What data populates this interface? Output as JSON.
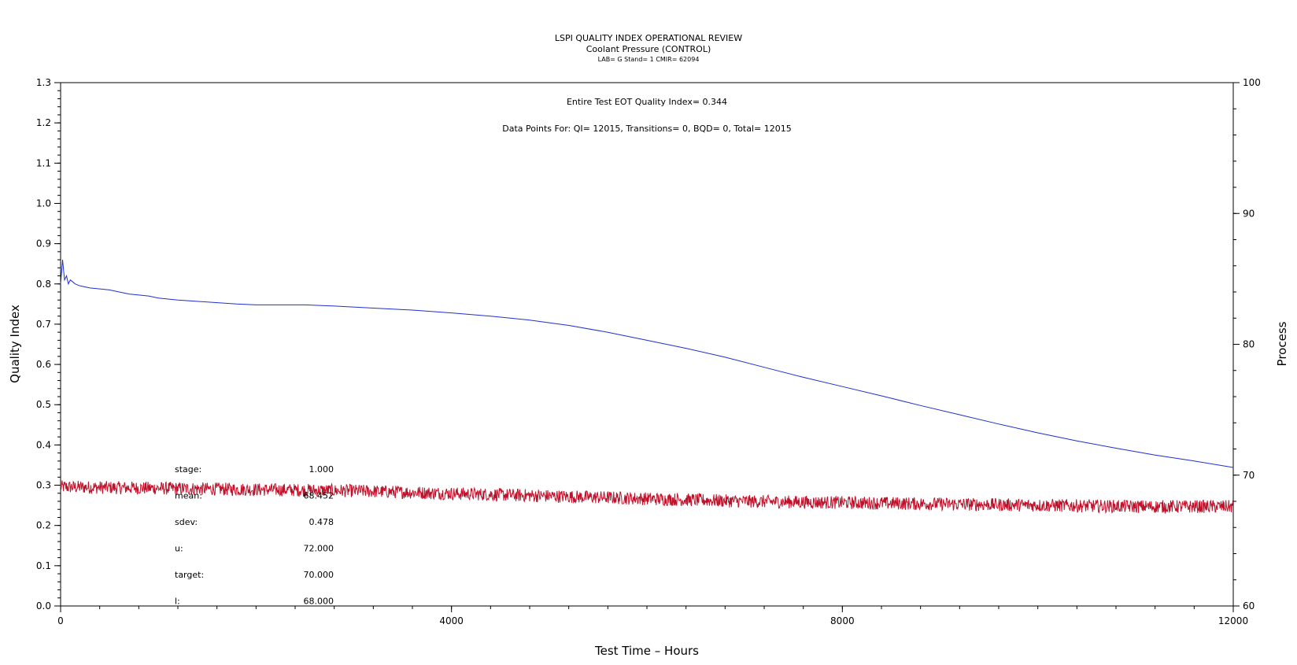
{
  "chart_data": {
    "type": "line",
    "title": "LSPI QUALITY INDEX OPERATIONAL REVIEW",
    "subtitle": "Coolant Pressure (CONTROL)",
    "subtitle2": "LAB= G Stand= 1 CMIR= 62094",
    "annotation_qi": "Entire Test EOT Quality Index=   0.344",
    "annotation_points": "Data Points For: QI=  12015, Transitions=       0, BQD=       0, Total=  12015",
    "xlabel": "Test Time  –  Hours",
    "ylabel": "Quality Index",
    "y2label": "Process",
    "xlim": [
      0,
      12000
    ],
    "ylim": [
      0,
      1.3
    ],
    "y2lim": [
      60,
      100
    ],
    "x_ticks": [
      "0",
      "4000",
      "8000",
      "12000"
    ],
    "y_ticks": [
      "0.0",
      "0.1",
      "0.2",
      "0.3",
      "0.4",
      "0.5",
      "0.6",
      "0.7",
      "0.8",
      "0.9",
      "1.0",
      "1.1",
      "1.2",
      "1.3"
    ],
    "y2_ticks": [
      "60",
      "70",
      "80",
      "90",
      "100"
    ],
    "grid": false,
    "series": [
      {
        "axis": "left",
        "color": "#1f2fcf",
        "x": [
          0,
          20,
          40,
          60,
          80,
          100,
          150,
          200,
          300,
          500,
          700,
          900,
          1000,
          1200,
          1500,
          1800,
          2000,
          2500,
          2800,
          3200,
          3600,
          4000,
          4400,
          4800,
          5200,
          5600,
          6000,
          6400,
          6800,
          7200,
          7600,
          8000,
          8400,
          8800,
          9200,
          9600,
          10000,
          10400,
          10800,
          11200,
          11600,
          12000
        ],
        "values": [
          0.8,
          0.86,
          0.81,
          0.82,
          0.8,
          0.81,
          0.8,
          0.795,
          0.79,
          0.785,
          0.775,
          0.77,
          0.765,
          0.76,
          0.755,
          0.75,
          0.748,
          0.748,
          0.745,
          0.74,
          0.735,
          0.728,
          0.72,
          0.71,
          0.697,
          0.68,
          0.66,
          0.64,
          0.618,
          0.593,
          0.568,
          0.545,
          0.522,
          0.498,
          0.475,
          0.452,
          0.43,
          0.41,
          0.392,
          0.375,
          0.36,
          0.344
        ]
      },
      {
        "axis": "right",
        "color": "#c0102a",
        "x": [
          0,
          1000,
          2000,
          3000,
          4000,
          5000,
          6000,
          7000,
          8000,
          9000,
          10000,
          11000,
          12000
        ],
        "values": [
          69.1,
          69.0,
          68.9,
          68.8,
          68.6,
          68.4,
          68.2,
          68.0,
          67.9,
          67.8,
          67.7,
          67.6,
          67.6
        ]
      }
    ],
    "stats": [
      {
        "label": "stage:",
        "value": "1.000"
      },
      {
        "label": "mean:",
        "value": "68.452"
      },
      {
        "label": "sdev:",
        "value": "0.478"
      },
      {
        "label": "u:",
        "value": "72.000"
      },
      {
        "label": "target:",
        "value": "70.000"
      },
      {
        "label": "l:",
        "value": "68.000"
      }
    ]
  }
}
